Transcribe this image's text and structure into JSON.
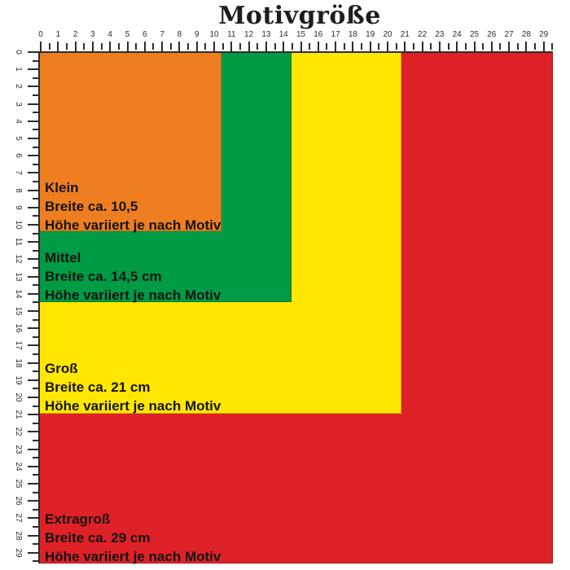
{
  "title": "Motivgröße",
  "ruler": {
    "unit": "cm",
    "min": 0,
    "max": 29,
    "minor_step": 0.5,
    "labels": [
      "0",
      "1",
      "2",
      "3",
      "4",
      "5",
      "6",
      "7",
      "8",
      "9",
      "10",
      "11",
      "12",
      "13",
      "14",
      "15",
      "16",
      "17",
      "18",
      "19",
      "20",
      "21",
      "22",
      "23",
      "24",
      "25",
      "26",
      "27",
      "28",
      "29"
    ]
  },
  "sizes": [
    {
      "id": "klein",
      "name": "Klein",
      "width_line": "Breite ca. 10,5",
      "height_line": "Höhe variiert je nach Motiv",
      "width_cm": 10.5,
      "color": "#EE7E1F",
      "border_color": "#C66A10"
    },
    {
      "id": "mittel",
      "name": "Mittel",
      "width_line": "Breite ca. 14,5 cm",
      "height_line": "Höhe variiert je nach Motiv",
      "width_cm": 14.5,
      "color": "#019A45",
      "border_color": "#007836"
    },
    {
      "id": "gross",
      "name": "Groß",
      "width_line": "Breite ca. 21 cm",
      "height_line": "Höhe variiert je nach Motiv",
      "width_cm": 21,
      "color": "#FFE702",
      "border_color": "#C9B600"
    },
    {
      "id": "extragross",
      "name": "Extragroß",
      "width_line": "Breite ca. 29 cm",
      "height_line": "Höhe variiert je nach Motiv",
      "width_cm": 29,
      "color": "#DE2127",
      "border_color": "#A5141A"
    }
  ]
}
